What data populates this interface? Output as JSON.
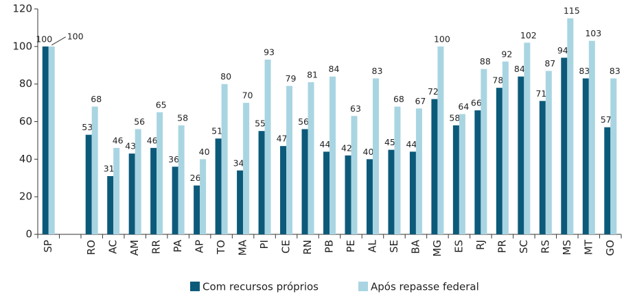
{
  "chart_data": {
    "type": "bar",
    "categories": [
      "SP",
      null,
      "RO",
      "AC",
      "AM",
      "RR",
      "PA",
      "AP",
      "TO",
      "MA",
      "PI",
      "CE",
      "RN",
      "PB",
      "PE",
      "AL",
      "SE",
      "BA",
      "MG",
      "ES",
      "RJ",
      "PR",
      "SC",
      "RS",
      "MS",
      "MT",
      "GO"
    ],
    "series": [
      {
        "name": "Com recursos próprios",
        "color": "#0c5a7a",
        "values": [
          100,
          null,
          53,
          31,
          43,
          46,
          36,
          26,
          51,
          34,
          55,
          47,
          56,
          44,
          42,
          40,
          45,
          44,
          72,
          58,
          66,
          78,
          84,
          71,
          94,
          83,
          57
        ]
      },
      {
        "name": "Após repasse federal",
        "color": "#a9d5e2",
        "values": [
          100,
          null,
          68,
          46,
          56,
          65,
          58,
          40,
          80,
          70,
          93,
          79,
          81,
          84,
          63,
          83,
          68,
          67,
          100,
          64,
          88,
          92,
          102,
          87,
          115,
          103,
          83
        ]
      }
    ],
    "ylim": [
      0,
      120
    ],
    "yticks": [
      0,
      20,
      40,
      60,
      80,
      100,
      120
    ],
    "legend": "bottom"
  }
}
